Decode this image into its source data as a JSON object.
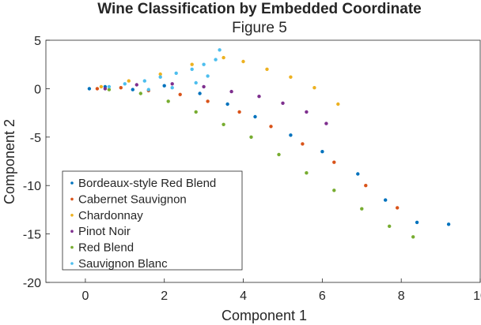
{
  "chart_data": {
    "type": "scatter",
    "title": "Wine Classification by Embedded Coordinate",
    "subtitle": "Figure 5",
    "xlabel": "Component 1",
    "ylabel": "Component 2",
    "xlim": [
      -1,
      10
    ],
    "ylim": [
      -20,
      5
    ],
    "xticks": [
      "0",
      "2",
      "4",
      "6",
      "8",
      "10"
    ],
    "xtick_values": [
      0,
      2,
      4,
      6,
      8,
      10
    ],
    "yticks": [
      "5",
      "0",
      "-5",
      "-10",
      "-15",
      "-20"
    ],
    "ytick_values": [
      5,
      0,
      -5,
      -10,
      -15,
      -20
    ],
    "grid": false,
    "legend_position": "lower-left",
    "series": [
      {
        "name": "Bordeaux-style Red Blend",
        "color": "#0072BD",
        "values": [
          [
            0.1,
            0.0
          ],
          [
            0.5,
            0.2
          ],
          [
            1.2,
            -0.1
          ],
          [
            2.0,
            0.3
          ],
          [
            2.9,
            -0.5
          ],
          [
            3.6,
            -1.6
          ],
          [
            4.3,
            -2.9
          ],
          [
            5.2,
            -4.8
          ],
          [
            6.0,
            -6.5
          ],
          [
            6.9,
            -8.8
          ],
          [
            7.6,
            -11.5
          ],
          [
            8.4,
            -13.8
          ],
          [
            9.2,
            -14.0
          ]
        ]
      },
      {
        "name": "Cabernet Sauvignon",
        "color": "#D95319",
        "values": [
          [
            0.3,
            0.0
          ],
          [
            0.9,
            0.1
          ],
          [
            1.6,
            -0.2
          ],
          [
            2.4,
            -0.6
          ],
          [
            3.1,
            -1.3
          ],
          [
            3.9,
            -2.4
          ],
          [
            4.7,
            -3.9
          ],
          [
            5.5,
            -5.7
          ],
          [
            6.3,
            -7.6
          ],
          [
            7.1,
            -10.0
          ],
          [
            7.9,
            -12.3
          ]
        ]
      },
      {
        "name": "Chardonnay",
        "color": "#EDB120",
        "values": [
          [
            0.4,
            0.2
          ],
          [
            1.1,
            0.8
          ],
          [
            1.9,
            1.5
          ],
          [
            2.7,
            2.5
          ],
          [
            3.5,
            3.2
          ],
          [
            4.0,
            2.8
          ],
          [
            4.6,
            2.0
          ],
          [
            5.2,
            1.2
          ],
          [
            5.8,
            0.1
          ],
          [
            6.4,
            -1.6
          ]
        ]
      },
      {
        "name": "Pinot Noir",
        "color": "#7E2F8E",
        "values": [
          [
            0.5,
            0.0
          ],
          [
            1.3,
            0.4
          ],
          [
            2.2,
            0.5
          ],
          [
            3.0,
            0.2
          ],
          [
            3.7,
            -0.3
          ],
          [
            4.4,
            -0.8
          ],
          [
            5.0,
            -1.5
          ],
          [
            5.6,
            -2.4
          ],
          [
            6.1,
            -3.6
          ]
        ]
      },
      {
        "name": "Red Blend",
        "color": "#77AC30",
        "values": [
          [
            0.6,
            -0.1
          ],
          [
            1.4,
            -0.5
          ],
          [
            2.1,
            -1.3
          ],
          [
            2.8,
            -2.4
          ],
          [
            3.5,
            -3.7
          ],
          [
            4.2,
            -5.0
          ],
          [
            4.9,
            -6.8
          ],
          [
            5.6,
            -8.7
          ],
          [
            6.3,
            -10.5
          ],
          [
            7.0,
            -12.4
          ],
          [
            7.7,
            -14.2
          ],
          [
            8.3,
            -15.3
          ]
        ]
      },
      {
        "name": "Sauvignon Blanc",
        "color": "#4DBEEE",
        "values": [
          [
            0.6,
            0.2
          ],
          [
            1.0,
            0.5
          ],
          [
            1.5,
            0.8
          ],
          [
            1.9,
            1.2
          ],
          [
            2.3,
            1.6
          ],
          [
            2.7,
            2.0
          ],
          [
            3.0,
            2.5
          ],
          [
            3.3,
            3.0
          ],
          [
            3.4,
            4.0
          ],
          [
            2.8,
            0.6
          ],
          [
            2.2,
            0.1
          ],
          [
            1.6,
            -0.1
          ],
          [
            3.1,
            1.3
          ]
        ]
      }
    ]
  }
}
